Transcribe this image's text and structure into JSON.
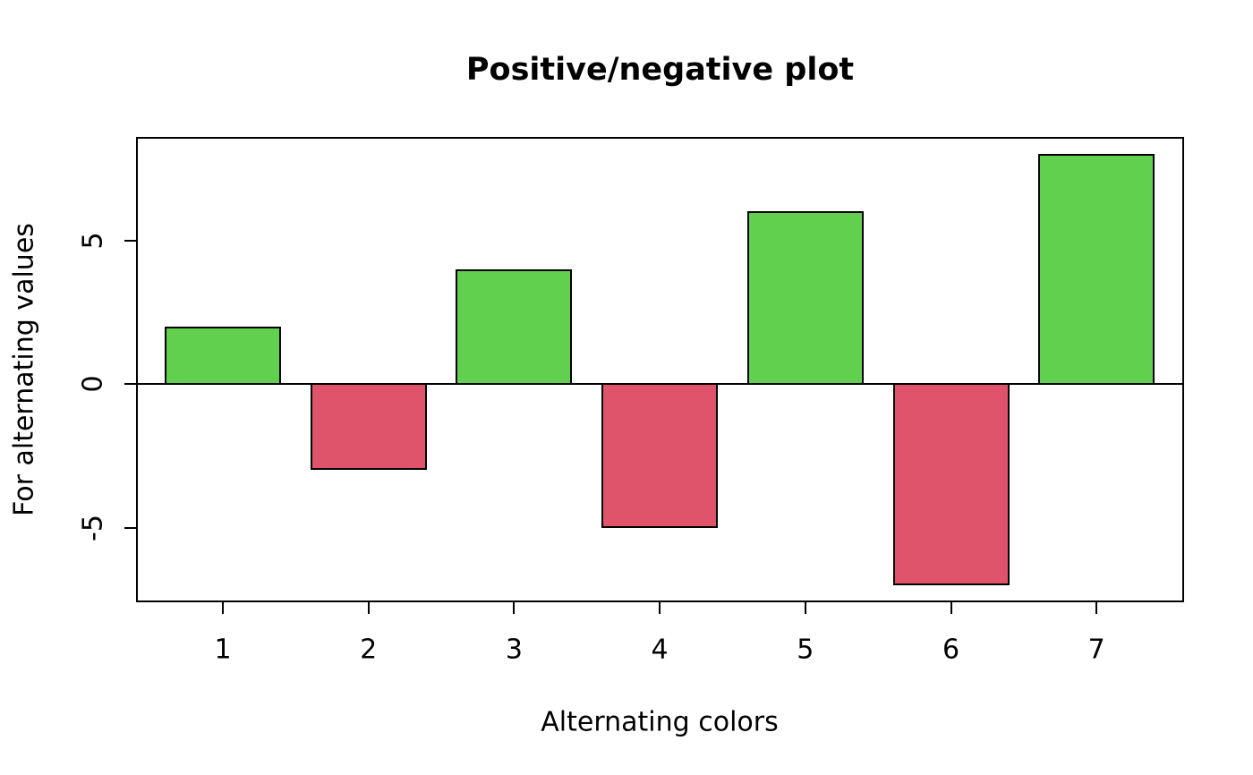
{
  "chart_data": {
    "type": "bar",
    "title": "Positive/negative plot",
    "xlabel": "Alternating colors",
    "ylabel": "For alternating values",
    "categories": [
      "1",
      "2",
      "3",
      "4",
      "5",
      "6",
      "7"
    ],
    "values": [
      2,
      -3,
      4,
      -5,
      6,
      -7,
      8
    ],
    "baseline": 0,
    "ylim": [
      -7.6,
      8.6
    ],
    "yticks": [
      -5,
      0,
      5
    ],
    "ytick_labels": [
      "-5",
      "0",
      "5"
    ],
    "grid": false,
    "legend": false,
    "colors": {
      "positive_bar": "#61D04F",
      "negative_bar": "#DF536B",
      "bar_border": "#000000",
      "axis": "#000000",
      "text": "#000000",
      "background": "#FFFFFF"
    }
  }
}
